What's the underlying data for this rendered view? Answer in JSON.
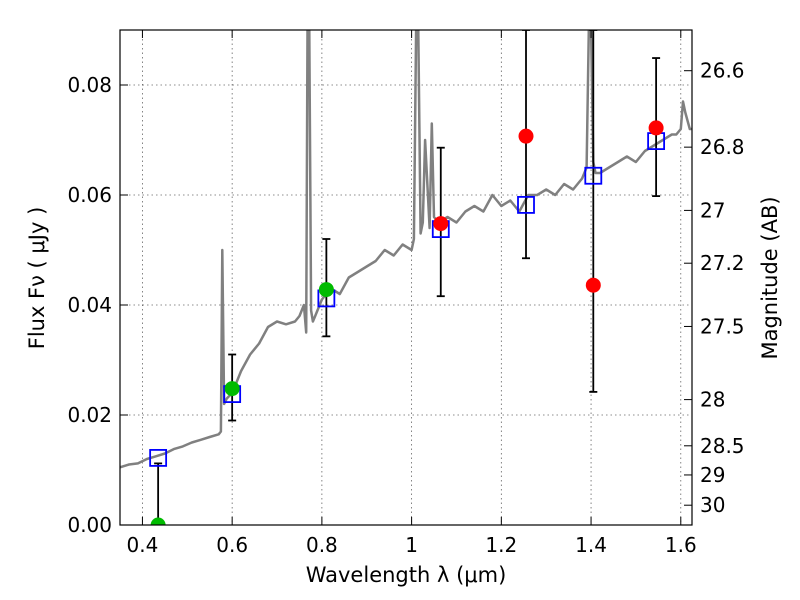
{
  "chart_data": {
    "type": "scatter",
    "xlabel": "Wavelength  λ (μm)",
    "ylabel": "Flux  Fν  ( μJy )",
    "ylabel_right": "Magnitude (AB)",
    "xlim": [
      0.35,
      1.625
    ],
    "ylim": [
      0.0,
      0.09
    ],
    "grid": true,
    "x_ticks": [
      0.4,
      0.6,
      0.8,
      1.0,
      1.2,
      1.4,
      1.6
    ],
    "x_tick_labels": [
      "0.4",
      "0.6",
      "0.8",
      "1",
      "1.2",
      "1.4",
      "1.6"
    ],
    "y_ticks": [
      0.0,
      0.02,
      0.04,
      0.06,
      0.08
    ],
    "y_tick_labels": [
      "0.00",
      "0.02",
      "0.04",
      "0.06",
      "0.08"
    ],
    "right_ticks": [
      {
        "label": "26.6",
        "flux": 0.0826
      },
      {
        "label": "26.8",
        "flux": 0.0687
      },
      {
        "label": "27",
        "flux": 0.0572
      },
      {
        "label": "27.2",
        "flux": 0.0476
      },
      {
        "label": "27.5",
        "flux": 0.0361
      },
      {
        "label": "28",
        "flux": 0.0228
      },
      {
        "label": "28.5",
        "flux": 0.0144
      },
      {
        "label": "29",
        "flux": 0.0091
      },
      {
        "label": "30",
        "flux": 0.0036
      }
    ],
    "colors": {
      "spectrum": "#808080",
      "model_marker": "#0000ff",
      "green_points": "#00bb00",
      "red_points": "#ff0000",
      "errorbar": "#000000"
    },
    "spectrum": {
      "x": [
        0.35,
        0.37,
        0.39,
        0.41,
        0.43,
        0.45,
        0.47,
        0.49,
        0.51,
        0.53,
        0.55,
        0.57,
        0.575,
        0.578,
        0.582,
        0.588,
        0.6,
        0.62,
        0.64,
        0.66,
        0.68,
        0.7,
        0.72,
        0.74,
        0.75,
        0.76,
        0.765,
        0.768,
        0.772,
        0.776,
        0.78,
        0.785,
        0.8,
        0.82,
        0.84,
        0.86,
        0.88,
        0.9,
        0.92,
        0.94,
        0.96,
        0.98,
        1.0,
        1.005,
        1.01,
        1.015,
        1.02,
        1.025,
        1.03,
        1.04,
        1.045,
        1.05,
        1.06,
        1.08,
        1.1,
        1.12,
        1.14,
        1.16,
        1.18,
        1.2,
        1.22,
        1.24,
        1.26,
        1.28,
        1.3,
        1.32,
        1.34,
        1.36,
        1.38,
        1.39,
        1.395,
        1.4,
        1.405,
        1.41,
        1.42,
        1.44,
        1.46,
        1.48,
        1.5,
        1.52,
        1.54,
        1.56,
        1.58,
        1.59,
        1.6,
        1.605,
        1.61,
        1.62,
        1.625
      ],
      "y": [
        0.0105,
        0.011,
        0.0112,
        0.012,
        0.0125,
        0.013,
        0.0138,
        0.0143,
        0.015,
        0.0155,
        0.016,
        0.0165,
        0.017,
        0.05,
        0.022,
        0.023,
        0.024,
        0.028,
        0.031,
        0.033,
        0.036,
        0.037,
        0.0365,
        0.037,
        0.038,
        0.04,
        0.035,
        0.09,
        0.09,
        0.039,
        0.037,
        0.038,
        0.041,
        0.043,
        0.042,
        0.045,
        0.046,
        0.047,
        0.048,
        0.05,
        0.049,
        0.051,
        0.05,
        0.052,
        0.09,
        0.09,
        0.053,
        0.055,
        0.07,
        0.054,
        0.073,
        0.056,
        0.055,
        0.056,
        0.055,
        0.057,
        0.058,
        0.057,
        0.06,
        0.058,
        0.059,
        0.057,
        0.06,
        0.06,
        0.061,
        0.06,
        0.062,
        0.061,
        0.063,
        0.065,
        0.09,
        0.09,
        0.066,
        0.064,
        0.064,
        0.065,
        0.066,
        0.067,
        0.066,
        0.068,
        0.069,
        0.07,
        0.071,
        0.071,
        0.072,
        0.077,
        0.075,
        0.072,
        0.072
      ]
    },
    "model_points": {
      "x": [
        0.435,
        0.6,
        0.81,
        1.065,
        1.255,
        1.405,
        1.545
      ],
      "y": [
        0.0122,
        0.0238,
        0.0412,
        0.0538,
        0.0582,
        0.0635,
        0.0698
      ]
    },
    "observed_points": [
      {
        "x": 0.435,
        "y": 0.0,
        "err_low": 0.0,
        "err_high": 0.0112,
        "color": "green"
      },
      {
        "x": 0.6,
        "y": 0.0248,
        "err_low": 0.0058,
        "err_high": 0.0062,
        "color": "green"
      },
      {
        "x": 0.81,
        "y": 0.0428,
        "err_low": 0.0085,
        "err_high": 0.0092,
        "color": "green"
      },
      {
        "x": 1.065,
        "y": 0.0548,
        "err_low": 0.0132,
        "err_high": 0.0138,
        "color": "red"
      },
      {
        "x": 1.255,
        "y": 0.0707,
        "err_low": 0.0222,
        "err_high": 0.0193,
        "color": "red"
      },
      {
        "x": 1.405,
        "y": 0.0436,
        "err_low": 0.0194,
        "err_high": 0.0464,
        "color": "red"
      },
      {
        "x": 1.545,
        "y": 0.0722,
        "err_low": 0.0124,
        "err_high": 0.0127,
        "color": "red"
      }
    ]
  }
}
